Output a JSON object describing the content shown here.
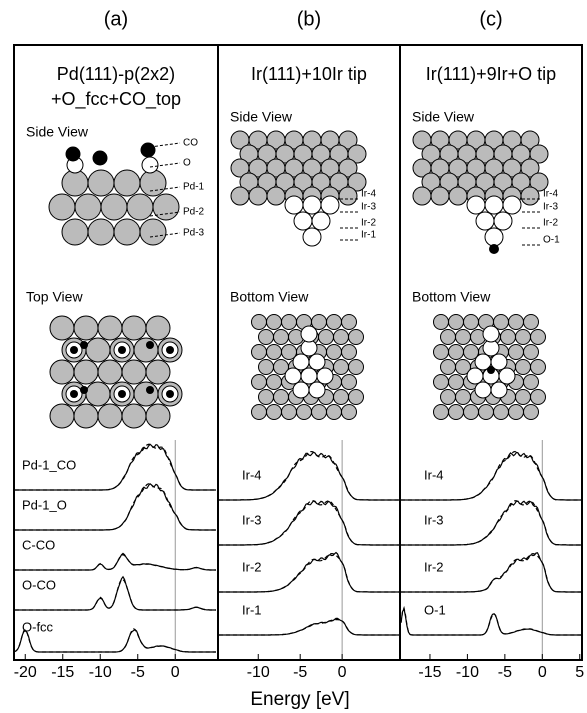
{
  "panels": [
    {
      "label": "(a)",
      "title": [
        "Pd(111)-p(2x2)",
        "+O_fcc+CO_top"
      ],
      "side_view": "Side View",
      "side_labels": [
        "CO",
        "O",
        "Pd-1",
        "Pd-2",
        "Pd-3"
      ],
      "plan_view": "Top View",
      "curve_labels": [
        "Pd-1_CO",
        "Pd-1_O",
        "C-CO",
        "O-CO",
        "O-fcc"
      ],
      "xlim": [
        -21.5,
        5.7
      ],
      "xticks": [
        -20,
        -15,
        -10,
        -5,
        0
      ]
    },
    {
      "label": "(b)",
      "title": [
        "Ir(111)+10Ir tip"
      ],
      "side_view": "Side View",
      "side_labels": [
        "Ir-4",
        "Ir-3",
        "Ir-2",
        "Ir-1"
      ],
      "plan_view": "Bottom View",
      "curve_labels": [
        "Ir-4",
        "Ir-3",
        "Ir-2",
        "Ir-1"
      ],
      "xlim": [
        -14.8,
        6.9
      ],
      "xticks": [
        -10,
        -5,
        0
      ]
    },
    {
      "label": "(c)",
      "title": [
        "Ir(111)+9Ir+O tip"
      ],
      "side_view": "Side View",
      "side_labels": [
        "Ir-4",
        "Ir-3",
        "Ir-2",
        "O-1"
      ],
      "plan_view": "Bottom View",
      "curve_labels": [
        "Ir-4",
        "Ir-3",
        "Ir-2",
        "O-1"
      ],
      "xlim": [
        -19,
        5.3
      ],
      "xticks": [
        -15,
        -10,
        -5,
        0,
        5
      ]
    }
  ],
  "x_axis_label": "Energy [eV]"
}
